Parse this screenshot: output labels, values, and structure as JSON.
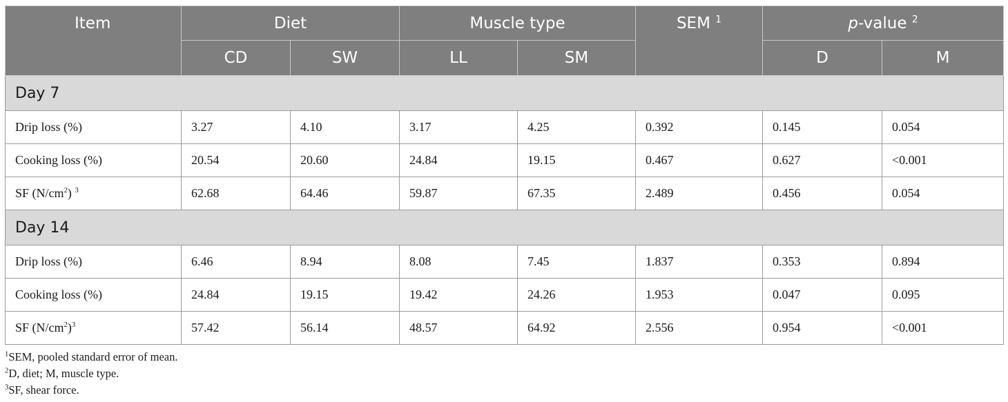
{
  "header": {
    "item": "Item",
    "diet": "Diet",
    "muscle_type": "Muscle type",
    "sem": "SEM",
    "sem_sup": "1",
    "pvalue_italic": "p",
    "pvalue_rest": "-value",
    "pvalue_sup": "2",
    "sub": [
      "CD",
      "SW",
      "LL",
      "SM",
      "D",
      "M"
    ]
  },
  "sections": [
    {
      "title": "Day 7",
      "rows": [
        {
          "label": "Drip loss (%)",
          "label_sup": "",
          "label_tail": "",
          "label_sup2": "",
          "values": [
            "3.27",
            "4.10",
            "3.17",
            "4.25",
            "0.392",
            "0.145",
            "0.054"
          ]
        },
        {
          "label": "Cooking loss (%)",
          "label_sup": "",
          "label_tail": "",
          "label_sup2": "",
          "values": [
            "20.54",
            "20.60",
            "24.84",
            "19.15",
            "0.467",
            "0.627",
            "<0.001"
          ]
        },
        {
          "label": "SF (N/cm",
          "label_sup": "2",
          "label_tail": ") ",
          "label_sup2": "3",
          "values": [
            "62.68",
            "64.46",
            "59.87",
            "67.35",
            "2.489",
            "0.456",
            "0.054"
          ]
        }
      ]
    },
    {
      "title": "Day 14",
      "rows": [
        {
          "label": "Drip loss (%)",
          "label_sup": "",
          "label_tail": "",
          "label_sup2": "",
          "values": [
            "6.46",
            "8.94",
            "8.08",
            "7.45",
            "1.837",
            "0.353",
            "0.894"
          ]
        },
        {
          "label": "Cooking loss (%)",
          "label_sup": "",
          "label_tail": "",
          "label_sup2": "",
          "values": [
            "24.84",
            "19.15",
            "19.42",
            "24.26",
            "1.953",
            "0.047",
            "0.095"
          ]
        },
        {
          "label": "SF (N/cm",
          "label_sup": "2",
          "label_tail": ")",
          "label_sup2": "3",
          "values": [
            "57.42",
            "56.14",
            "48.57",
            "64.92",
            "2.556",
            "0.954",
            "<0.001"
          ]
        }
      ]
    }
  ],
  "footnotes": [
    {
      "sup": "1",
      "text": "SEM, pooled standard error of mean."
    },
    {
      "sup": "2",
      "text": "D, diet; M, muscle type."
    },
    {
      "sup": "3",
      "text": "SF, shear force."
    }
  ]
}
